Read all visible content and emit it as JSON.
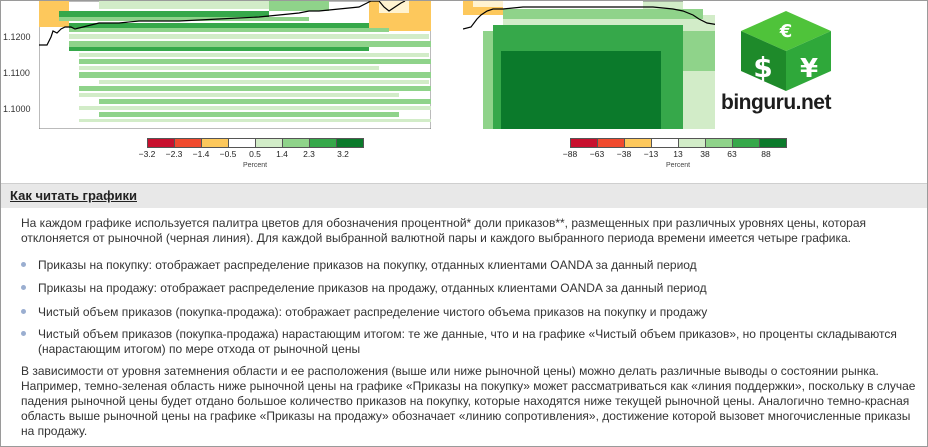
{
  "left_chart": {
    "y_ticks": [
      "1.1200",
      "1.1100",
      "1.1000"
    ],
    "colorbar_ticks": [
      "−3.2",
      "−2.3",
      "−1.4",
      "−0.5",
      "0.5",
      "1.4",
      "2.3",
      "3.2"
    ],
    "colorbar_label": "Percent"
  },
  "right_chart": {
    "colorbar_ticks": [
      "−88",
      "−63",
      "−38",
      "−13",
      "13",
      "38",
      "63",
      "88"
    ],
    "colorbar_label": "Percent"
  },
  "palette": [
    "#c8102e",
    "#f04a2e",
    "#fdc85c",
    "#ffffff",
    "#d2ecc8",
    "#8fd38a",
    "#36a84a",
    "#0b7a2b"
  ],
  "logo": {
    "text": "binguru.net",
    "icon": "currency-cube-icon"
  },
  "section": {
    "title": "Как читать графики",
    "intro": "На каждом графике используется палитра цветов для обозначения процентной* доли приказов**, размещенных при различных уровнях цены, которая отклоняется от рыночной (черная линия). Для каждой выбранной валютной пары и каждого выбранного периода времени имеется четыре графика.",
    "bullets": [
      "Приказы на покупку: отображает распределение приказов на покупку, отданных клиентами OANDA за данный период",
      "Приказы на продажу: отображает распределение приказов на продажу, отданных клиентами OANDA за данный период",
      "Чистый объем приказов (покупка-продажа): отображает распределение чистого объема приказов на покупку и продажу",
      "Чистый объем приказов (покупка-продажа) нарастающим итогом: те же данные, что и на графике «Чистый объем приказов», но проценты складываются (нарастающим итогом) по мере отхода от рыночной цены"
    ],
    "conclusion": "В зависимости от уровня затемнения области и ее расположения (выше или ниже рыночной цены) можно делать различные выводы о состоянии рынка. Например, темно-зеленая область ниже рыночной цены на графике «Приказы на покупку» может рассматриваться как «линия поддержки», поскольку в случае падения рыночной цены будет отдано большое количество приказов на покупку, которые находятся ниже текущей рыночной цены. Аналогично темно-красная область выше рыночной цены на графике «Приказы на продажу» обозначает «линию сопротивления», достижение которой вызовет многочисленные приказы на продажу."
  }
}
